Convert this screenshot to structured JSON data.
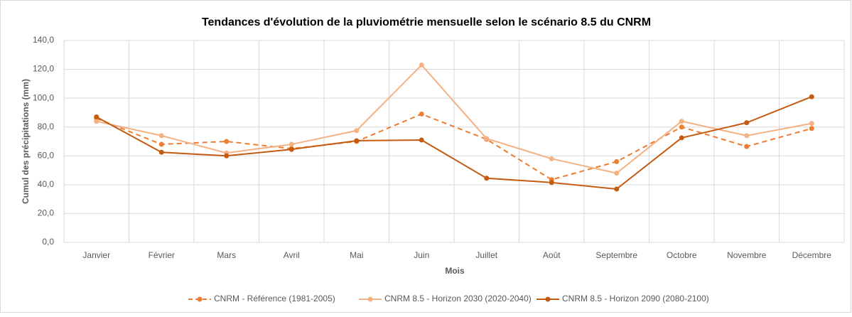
{
  "chart_data": {
    "type": "line",
    "title": "Tendances d'évolution de la pluviométrie mensuelle selon le scénario 8.5 du CNRM",
    "x_label": "Mois",
    "y_label": "Cumul des précipitations (mm)",
    "categories": [
      "Janvier",
      "Février",
      "Mars",
      "Avril",
      "Mai",
      "Juin",
      "Juillet",
      "Août",
      "Septembre",
      "Octobre",
      "Novembre",
      "Décembre"
    ],
    "series": [
      {
        "name": "CNRM - Référence (1981-2005)",
        "color": "#ed7d31",
        "dashed": true,
        "values": [
          86,
          68,
          70,
          65,
          70,
          89,
          71.5,
          43.5,
          56,
          80,
          66.5,
          79
        ]
      },
      {
        "name": "CNRM 8.5 - Horizon 2030 (2020-2040)",
        "color": "#f4b183",
        "dashed": false,
        "values": [
          84,
          74,
          62,
          68,
          77.5,
          123,
          72,
          58,
          48,
          84,
          74,
          82.5
        ]
      },
      {
        "name": "CNRM 8.5 - Horizon 2090 (2080-2100)",
        "color": "#c55a11",
        "dashed": false,
        "values": [
          87,
          62.5,
          60,
          64.5,
          70.5,
          71,
          44.5,
          41.5,
          37,
          72.5,
          83,
          101
        ]
      }
    ],
    "ylim": [
      0,
      140
    ],
    "yticks": [
      {
        "value": 0,
        "label": "0,0"
      },
      {
        "value": 20,
        "label": "20,0"
      },
      {
        "value": 40,
        "label": "40,0"
      },
      {
        "value": 60,
        "label": "60,0"
      },
      {
        "value": 80,
        "label": "80,0"
      },
      {
        "value": 100,
        "label": "100,0"
      },
      {
        "value": 120,
        "label": "120,0"
      },
      {
        "value": 140,
        "label": "140,0"
      }
    ],
    "grid": true,
    "legend": "bottom"
  }
}
